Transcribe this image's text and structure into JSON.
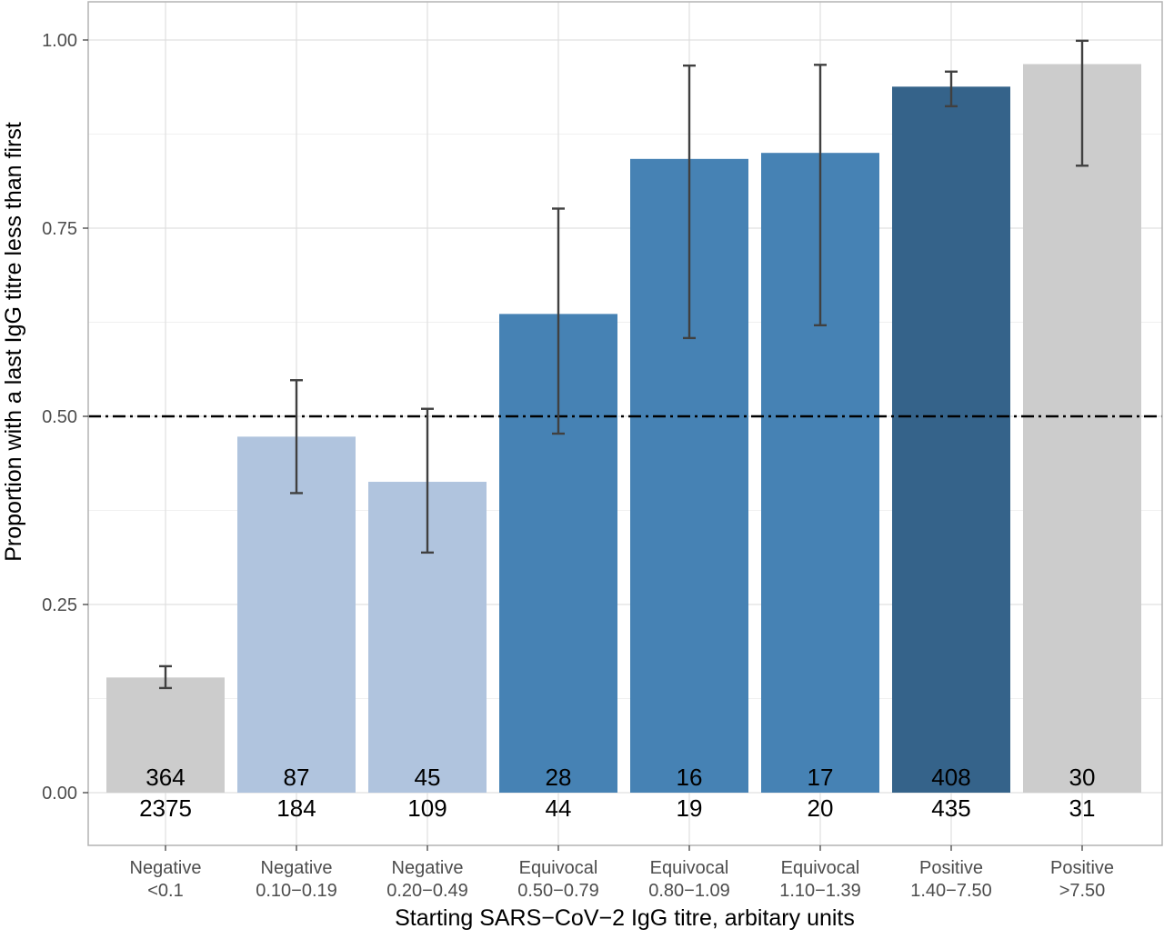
{
  "chart_data": {
    "type": "bar",
    "title": "",
    "xlabel": "Starting SARS−CoV−2 IgG titre, arbitary units",
    "ylabel": "Proportion with a last IgG titre less than first",
    "ylim": [
      0,
      1.03
    ],
    "yticks": [
      0,
      0.25,
      0.5,
      0.75,
      1.0
    ],
    "ytick_labels": [
      "0.00",
      "0.25",
      "0.50",
      "0.75",
      "1.00"
    ],
    "reference_line": {
      "y": 0.5,
      "style": "dash-dot",
      "color": "#000000"
    },
    "grid": true,
    "legend": "none",
    "categories": [
      [
        "Negative",
        "<0.1"
      ],
      [
        "Negative",
        "0.10−0.19"
      ],
      [
        "Negative",
        "0.20−0.49"
      ],
      [
        "Equivocal",
        "0.50−0.79"
      ],
      [
        "Equivocal",
        "0.80−1.09"
      ],
      [
        "Equivocal",
        "1.10−1.39"
      ],
      [
        "Positive",
        "1.40−7.50"
      ],
      [
        "Positive",
        ">7.50"
      ]
    ],
    "values": [
      0.153,
      0.473,
      0.413,
      0.636,
      0.842,
      0.85,
      0.938,
      0.968
    ],
    "error_low": [
      0.139,
      0.398,
      0.319,
      0.477,
      0.604,
      0.621,
      0.912,
      0.833
    ],
    "error_high": [
      0.168,
      0.548,
      0.51,
      0.776,
      0.966,
      0.967,
      0.958,
      0.999
    ],
    "numerators": [
      "364",
      "87",
      "45",
      "28",
      "16",
      "17",
      "408",
      "30"
    ],
    "denominators": [
      "2375",
      "184",
      "109",
      "44",
      "19",
      "20",
      "435",
      "31"
    ],
    "colors": [
      "#cccccc",
      "#b0c4de",
      "#b0c4de",
      "#4682b4",
      "#4682b4",
      "#4682b4",
      "#35638a",
      "#cccccc"
    ]
  }
}
